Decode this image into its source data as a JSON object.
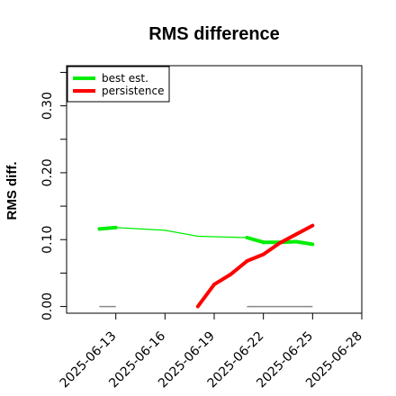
{
  "chart_data": {
    "type": "line",
    "title": "RMS difference",
    "xlabel": "",
    "ylabel": "RMS diff.",
    "x_axis": {
      "type": "date",
      "range": [
        "2025-06-10",
        "2025-06-28"
      ],
      "tick_labels": [
        "2025-06-13",
        "2025-06-16",
        "2025-06-19",
        "2025-06-22",
        "2025-06-25",
        "2025-06-28"
      ]
    },
    "y_axis": {
      "range": [
        -0.01,
        0.36
      ],
      "ticks": [
        0.0,
        0.05,
        0.1,
        0.15,
        0.2,
        0.25,
        0.3,
        0.35
      ],
      "tick_labels": [
        "0.00",
        "",
        "0.10",
        "",
        "0.20",
        "",
        "0.30",
        ""
      ]
    },
    "grid": false,
    "legend": {
      "placement": "top-left"
    },
    "series": [
      {
        "name": "best est.",
        "color": "#00ee00",
        "points": [
          {
            "x": "2025-06-12",
            "y": 0.116,
            "w": "thick"
          },
          {
            "x": "2025-06-13",
            "y": 0.118,
            "w": "thick"
          },
          {
            "x": "2025-06-16",
            "y": 0.114,
            "w": "thin"
          },
          {
            "x": "2025-06-18",
            "y": 0.105,
            "w": "thin"
          },
          {
            "x": "2025-06-21",
            "y": 0.103,
            "w": "thin"
          },
          {
            "x": "2025-06-22",
            "y": 0.096,
            "w": "thick"
          },
          {
            "x": "2025-06-23",
            "y": 0.096,
            "w": "thick"
          },
          {
            "x": "2025-06-24",
            "y": 0.097,
            "w": "thick"
          },
          {
            "x": "2025-06-25",
            "y": 0.093,
            "w": "thick"
          }
        ]
      },
      {
        "name": "persistence",
        "color": "#ff0000",
        "points": [
          {
            "x": "2025-06-18",
            "y": 0.0
          },
          {
            "x": "2025-06-19",
            "y": 0.033
          },
          {
            "x": "2025-06-20",
            "y": 0.048
          },
          {
            "x": "2025-06-21",
            "y": 0.068
          },
          {
            "x": "2025-06-22",
            "y": 0.078
          },
          {
            "x": "2025-06-23",
            "y": 0.095
          },
          {
            "x": "2025-06-24",
            "y": 0.108
          },
          {
            "x": "2025-06-25",
            "y": 0.121
          }
        ]
      }
    ],
    "reference_segments": [
      {
        "color": "#888888",
        "x_start": "2025-06-12",
        "x_end": "2025-06-13",
        "y": 0.0
      },
      {
        "color": "#888888",
        "x_start": "2025-06-21",
        "x_end": "2025-06-25",
        "y": 0.0
      }
    ]
  }
}
